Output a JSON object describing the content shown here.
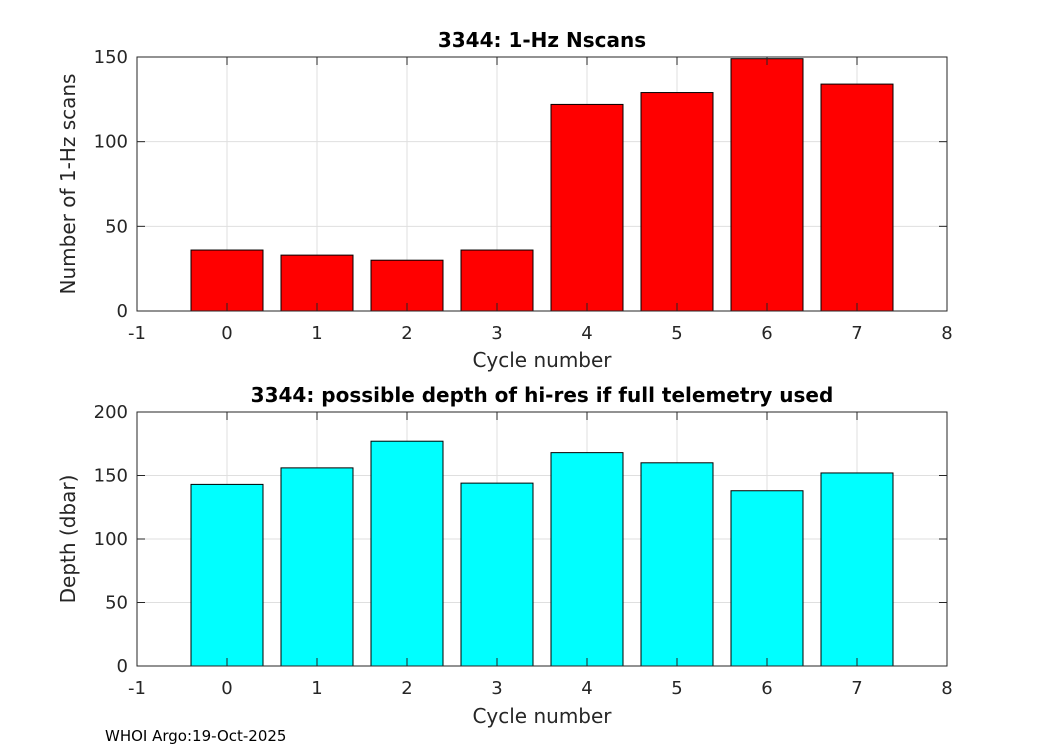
{
  "chart_data": [
    {
      "type": "bar",
      "title": "3344: 1-Hz Nscans",
      "xlabel": "Cycle number",
      "ylabel": "Number of 1-Hz scans",
      "categories": [
        0,
        1,
        2,
        3,
        4,
        5,
        6,
        7
      ],
      "values": [
        36,
        33,
        30,
        36,
        122,
        129,
        149,
        134
      ],
      "xlim": [
        -1,
        8
      ],
      "ylim": [
        0,
        150
      ],
      "xticks": [
        -1,
        0,
        1,
        2,
        3,
        4,
        5,
        6,
        7,
        8
      ],
      "yticks": [
        0,
        50,
        100,
        150
      ],
      "bar_color": "#ff0000",
      "grid": true
    },
    {
      "type": "bar",
      "title": "3344: possible depth of hi-res if full telemetry used",
      "xlabel": "Cycle number",
      "ylabel": "Depth (dbar)",
      "categories": [
        0,
        1,
        2,
        3,
        4,
        5,
        6,
        7
      ],
      "values": [
        143,
        156,
        177,
        144,
        168,
        160,
        138,
        152
      ],
      "xlim": [
        -1,
        8
      ],
      "ylim": [
        0,
        200
      ],
      "xticks": [
        -1,
        0,
        1,
        2,
        3,
        4,
        5,
        6,
        7,
        8
      ],
      "yticks": [
        0,
        50,
        100,
        150,
        200
      ],
      "bar_color": "#00ffff",
      "grid": true
    }
  ],
  "footer": "WHOI Argo:19-Oct-2025"
}
